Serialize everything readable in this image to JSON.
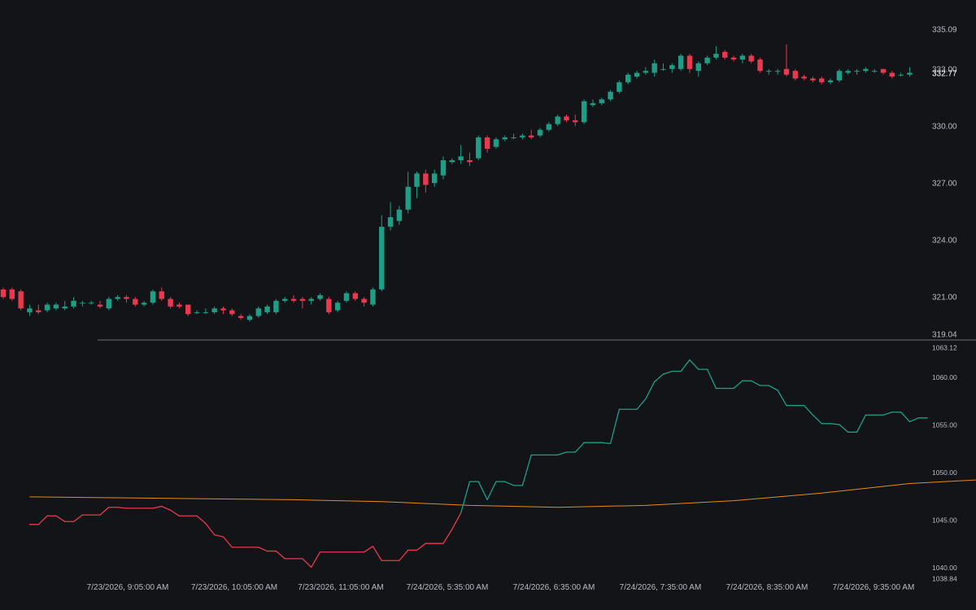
{
  "colors": {
    "background": "#131417",
    "up": "#1f9e86",
    "down": "#e8394f",
    "ma": "#e88a1a",
    "separator": "#6e7178",
    "text": "#b8bcc4"
  },
  "chart_data": [
    {
      "type": "candlestick",
      "name": "price",
      "yticks": [
        321.0,
        324.0,
        327.0,
        330.0,
        333.0,
        335.09
      ],
      "ylim": [
        319.04,
        335.09
      ],
      "last_price": 332.77,
      "candles": [
        [
          321.4,
          321.0,
          321.5,
          320.9
        ],
        [
          321.4,
          320.9,
          321.5,
          320.8
        ],
        [
          321.3,
          320.4,
          321.4,
          320.3
        ],
        [
          320.2,
          320.4,
          320.6,
          320.0
        ],
        [
          320.3,
          320.2,
          320.6,
          320.1
        ],
        [
          320.3,
          320.6,
          320.7,
          320.2
        ],
        [
          320.4,
          320.6,
          320.7,
          320.3
        ],
        [
          320.4,
          320.5,
          320.8,
          320.3
        ],
        [
          320.5,
          320.8,
          321.0,
          320.4
        ],
        [
          320.7,
          320.7,
          320.8,
          320.5
        ],
        [
          320.7,
          320.7,
          320.8,
          320.6
        ],
        [
          320.6,
          320.5,
          320.8,
          320.4
        ],
        [
          320.4,
          320.9,
          321.0,
          320.3
        ],
        [
          320.9,
          321.0,
          321.1,
          320.8
        ],
        [
          321.0,
          320.9,
          321.1,
          320.7
        ],
        [
          320.9,
          320.6,
          321.0,
          320.5
        ],
        [
          320.6,
          320.7,
          320.8,
          320.5
        ],
        [
          320.7,
          321.3,
          321.4,
          320.6
        ],
        [
          321.3,
          320.9,
          321.5,
          320.8
        ],
        [
          320.9,
          320.5,
          321.0,
          320.4
        ],
        [
          320.6,
          320.5,
          320.7,
          320.4
        ],
        [
          320.6,
          320.1,
          320.6,
          320.0
        ],
        [
          320.2,
          320.2,
          320.3,
          320.1
        ],
        [
          320.2,
          320.2,
          320.4,
          320.1
        ],
        [
          320.2,
          320.4,
          320.5,
          320.1
        ],
        [
          320.4,
          320.3,
          320.5,
          320.1
        ],
        [
          320.3,
          320.1,
          320.4,
          320.0
        ],
        [
          320.0,
          319.9,
          320.1,
          319.8
        ],
        [
          319.8,
          320.0,
          320.1,
          319.7
        ],
        [
          320.0,
          320.4,
          320.5,
          319.9
        ],
        [
          320.2,
          320.5,
          320.6,
          320.1
        ],
        [
          320.2,
          320.8,
          320.9,
          320.1
        ],
        [
          320.8,
          320.9,
          321.0,
          320.7
        ],
        [
          320.9,
          320.8,
          321.1,
          320.7
        ],
        [
          320.9,
          320.8,
          321.0,
          320.4
        ],
        [
          320.8,
          320.9,
          321.0,
          320.6
        ],
        [
          320.9,
          321.1,
          321.2,
          320.8
        ],
        [
          320.9,
          320.2,
          321.0,
          320.1
        ],
        [
          320.3,
          320.7,
          320.8,
          320.2
        ],
        [
          320.8,
          321.2,
          321.3,
          320.7
        ],
        [
          321.2,
          320.9,
          321.3,
          320.8
        ],
        [
          320.9,
          320.7,
          321.0,
          320.5
        ],
        [
          320.6,
          321.4,
          321.5,
          320.5
        ],
        [
          321.4,
          324.7,
          325.3,
          321.3
        ],
        [
          324.7,
          325.2,
          326.0,
          324.5
        ],
        [
          325.0,
          325.6,
          325.8,
          324.8
        ],
        [
          325.6,
          326.8,
          327.6,
          325.4
        ],
        [
          326.8,
          327.5,
          327.6,
          326.2
        ],
        [
          327.5,
          326.9,
          327.7,
          326.5
        ],
        [
          327.0,
          327.5,
          327.7,
          326.8
        ],
        [
          327.4,
          328.2,
          328.4,
          327.2
        ],
        [
          328.1,
          328.2,
          328.3,
          328.0
        ],
        [
          328.2,
          328.4,
          329.0,
          328.0
        ],
        [
          328.2,
          328.1,
          328.6,
          327.9
        ],
        [
          328.3,
          329.4,
          329.5,
          328.2
        ],
        [
          329.4,
          328.8,
          329.5,
          328.6
        ],
        [
          328.9,
          329.3,
          329.4,
          328.8
        ],
        [
          329.3,
          329.4,
          329.5,
          329.2
        ],
        [
          329.4,
          329.4,
          329.6,
          329.3
        ],
        [
          329.4,
          329.5,
          329.6,
          329.3
        ],
        [
          329.5,
          329.4,
          329.8,
          329.3
        ],
        [
          329.5,
          329.8,
          329.9,
          329.4
        ],
        [
          329.8,
          330.1,
          330.2,
          329.7
        ],
        [
          330.1,
          330.5,
          330.6,
          330.0
        ],
        [
          330.5,
          330.3,
          330.6,
          330.2
        ],
        [
          330.3,
          330.2,
          330.6,
          330.0
        ],
        [
          330.2,
          331.3,
          331.4,
          330.1
        ],
        [
          331.1,
          331.2,
          331.4,
          331.0
        ],
        [
          331.2,
          331.4,
          331.5,
          331.1
        ],
        [
          331.4,
          331.8,
          331.9,
          331.3
        ],
        [
          331.8,
          332.3,
          332.4,
          331.7
        ],
        [
          332.3,
          332.7,
          332.8,
          332.2
        ],
        [
          332.6,
          332.8,
          332.9,
          332.5
        ],
        [
          332.8,
          332.9,
          333.1,
          332.7
        ],
        [
          332.8,
          333.3,
          333.5,
          332.6
        ],
        [
          333.0,
          333.0,
          333.3,
          332.9
        ],
        [
          333.0,
          333.2,
          333.3,
          332.8
        ],
        [
          333.0,
          333.7,
          333.8,
          332.9
        ],
        [
          333.7,
          333.0,
          333.8,
          332.8
        ],
        [
          332.9,
          333.3,
          333.4,
          332.6
        ],
        [
          333.3,
          333.6,
          333.7,
          333.2
        ],
        [
          333.6,
          333.8,
          334.2,
          333.5
        ],
        [
          333.9,
          333.6,
          334.0,
          333.5
        ],
        [
          333.6,
          333.5,
          333.7,
          333.4
        ],
        [
          333.5,
          333.7,
          333.8,
          333.3
        ],
        [
          333.7,
          333.4,
          333.8,
          333.3
        ],
        [
          333.5,
          332.9,
          333.6,
          332.8
        ],
        [
          332.9,
          332.9,
          333.0,
          332.7
        ],
        [
          332.9,
          332.9,
          333.0,
          332.7
        ],
        [
          333.0,
          332.7,
          334.3,
          332.6
        ],
        [
          332.9,
          332.5,
          333.0,
          332.4
        ],
        [
          332.6,
          332.5,
          332.7,
          332.4
        ],
        [
          332.5,
          332.4,
          332.6,
          332.3
        ],
        [
          332.5,
          332.3,
          332.6,
          332.2
        ],
        [
          332.3,
          332.4,
          332.5,
          332.2
        ],
        [
          332.4,
          332.9,
          333.0,
          332.3
        ],
        [
          332.8,
          332.9,
          333.0,
          332.7
        ],
        [
          332.9,
          332.9,
          333.0,
          332.7
        ],
        [
          332.9,
          333.0,
          333.1,
          332.8
        ],
        [
          332.9,
          332.9,
          333.0,
          332.8
        ],
        [
          333.0,
          332.8,
          333.0,
          332.7
        ],
        [
          332.8,
          332.6,
          332.9,
          332.5
        ],
        [
          332.7,
          332.7,
          332.8,
          332.6
        ],
        [
          332.7,
          332.8,
          333.1,
          332.6
        ]
      ]
    },
    {
      "type": "line",
      "name": "indicator",
      "yticks": [
        1040.0,
        1045.0,
        1050.0,
        1055.0,
        1060.0
      ],
      "ylim": [
        1038.84,
        1063.12
      ],
      "series": [
        {
          "color": "#e88a1a",
          "points": [
            [
              0,
              1047.4
            ],
            [
              10,
              1047.3
            ],
            [
              20,
              1047.2
            ],
            [
              30,
              1047.1
            ],
            [
              40,
              1046.9
            ],
            [
              50,
              1046.5
            ],
            [
              60,
              1046.3
            ],
            [
              70,
              1046.5
            ],
            [
              80,
              1047.0
            ],
            [
              90,
              1047.8
            ],
            [
              100,
              1048.8
            ],
            [
              110,
              1049.3
            ]
          ]
        },
        {
          "values": [
            1044.5,
            1044.5,
            1045.4,
            1045.4,
            1044.8,
            1044.8,
            1045.5,
            1045.5,
            1045.5,
            1046.3,
            1046.3,
            1046.2,
            1046.2,
            1046.2,
            1046.2,
            1046.4,
            1046.0,
            1045.4,
            1045.4,
            1045.4,
            1044.6,
            1043.4,
            1043.2,
            1042.1,
            1042.1,
            1042.1,
            1042.1,
            1041.7,
            1041.7,
            1040.9,
            1040.9,
            1040.9,
            1040.0,
            1041.6,
            1041.6,
            1041.6,
            1041.6,
            1041.6,
            1041.6,
            1042.2,
            1040.7,
            1040.7,
            1040.7,
            1041.8,
            1041.8,
            1042.5,
            1042.5,
            1042.5,
            1044.0,
            1045.7,
            1049.0,
            1049.0,
            1047.1,
            1049.0,
            1049.0,
            1048.6,
            1048.6,
            1051.8,
            1051.8,
            1051.8,
            1051.8,
            1052.1,
            1052.1,
            1053.1,
            1053.1,
            1053.1,
            1053.0,
            1056.6,
            1056.6,
            1056.6,
            1057.7,
            1059.5,
            1060.3,
            1060.6,
            1060.6,
            1061.8,
            1060.8,
            1060.8,
            1058.8,
            1058.8,
            1058.8,
            1059.6,
            1059.6,
            1059.1,
            1059.1,
            1058.6,
            1057.0,
            1057.0,
            1057.0,
            1056.0,
            1055.1,
            1055.1,
            1055.0,
            1054.2,
            1054.2,
            1056.0,
            1056.0,
            1056.0,
            1056.3,
            1056.3,
            1055.3,
            1055.7,
            1055.7
          ],
          "up_color": "#1f9e86",
          "down_color": "#e8394f"
        }
      ]
    }
  ],
  "time_axis": {
    "labels": [
      "7/23/2026, 9:05:00 AM",
      "7/23/2026, 10:05:00 AM",
      "7/23/2026, 11:05:00 AM",
      "7/24/2026, 5:35:00 AM",
      "7/24/2026, 6:35:00 AM",
      "7/24/2026, 7:35:00 AM",
      "7/24/2026, 8:35:00 AM",
      "7/24/2026, 9:35:00 AM"
    ]
  }
}
